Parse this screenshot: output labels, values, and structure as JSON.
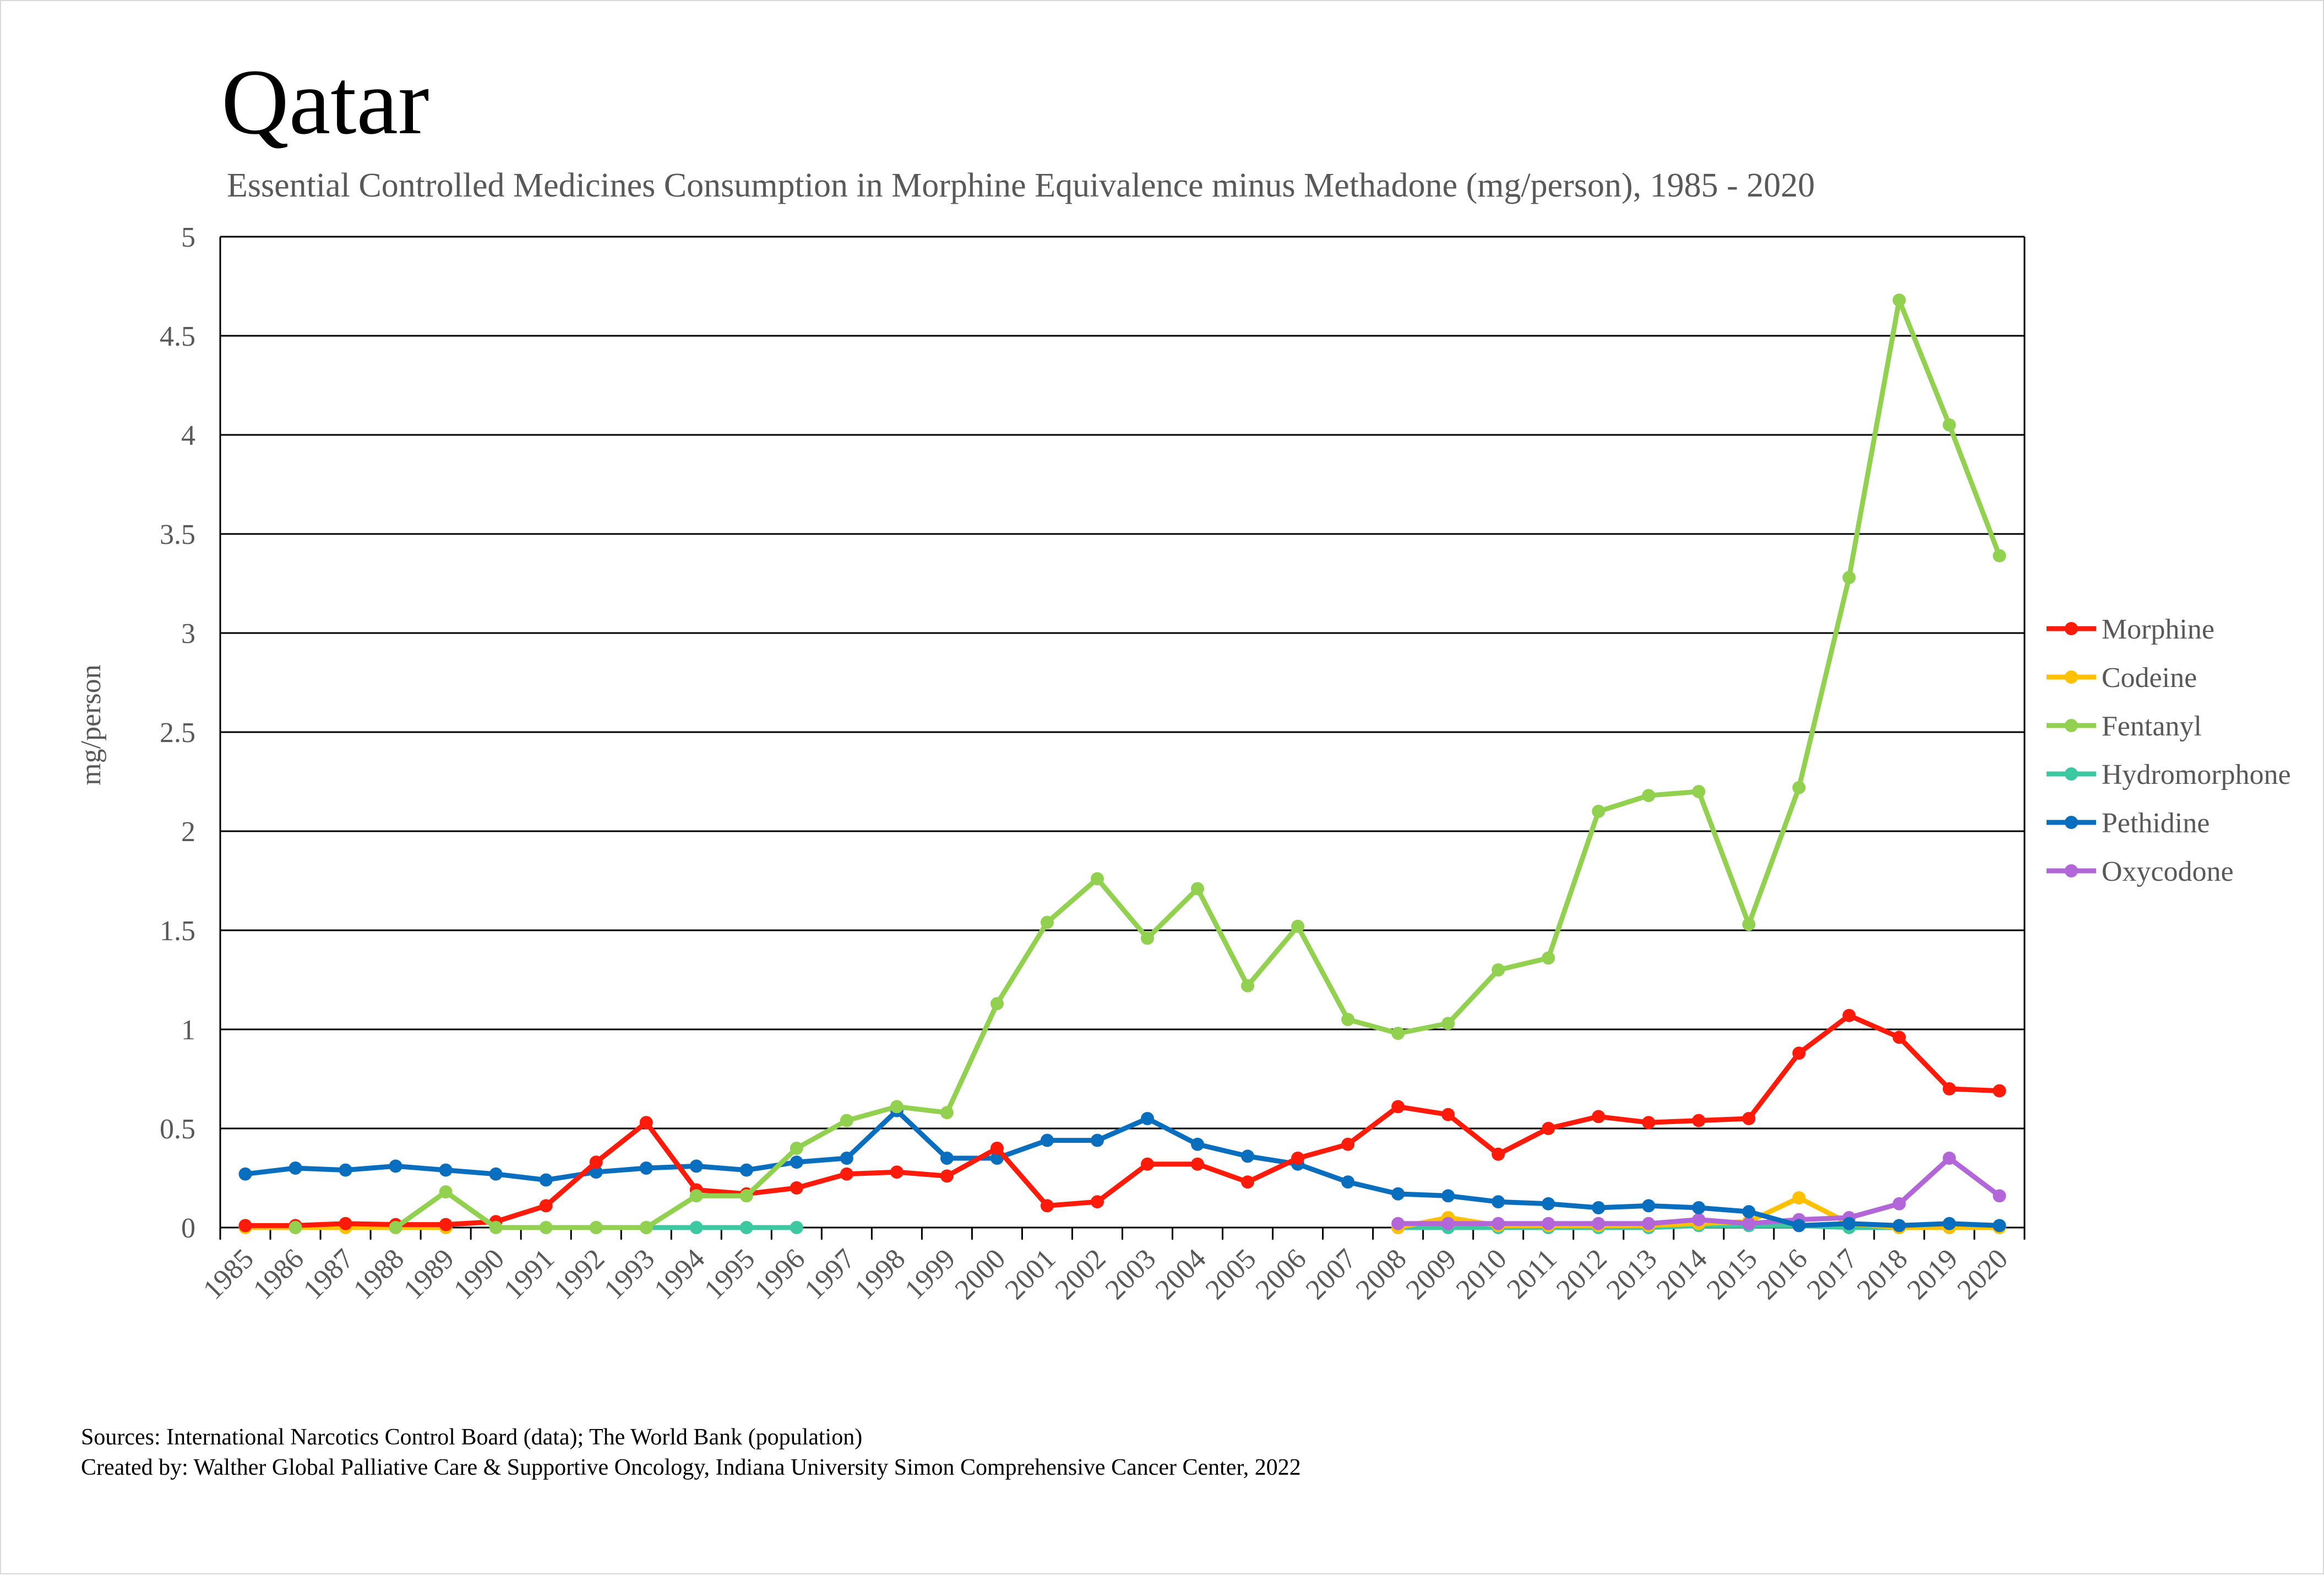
{
  "chart_data": {
    "type": "line",
    "title": "Qatar",
    "subtitle": "Essential Controlled Medicines Consumption in Morphine Equivalence minus Methadone (mg/person), 1985 - 2020",
    "xlabel": "",
    "ylabel": "mg/person",
    "ylim": [
      0,
      5
    ],
    "yticks": [
      "0",
      "0.5",
      "1",
      "1.5",
      "2",
      "2.5",
      "3",
      "3.5",
      "4",
      "4.5",
      "5"
    ],
    "categories": [
      "1985",
      "1986",
      "1987",
      "1988",
      "1989",
      "1990",
      "1991",
      "1992",
      "1993",
      "1994",
      "1995",
      "1996",
      "1997",
      "1998",
      "1999",
      "2000",
      "2001",
      "2002",
      "2003",
      "2004",
      "2005",
      "2006",
      "2007",
      "2008",
      "2009",
      "2010",
      "2011",
      "2012",
      "2013",
      "2014",
      "2015",
      "2016",
      "2017",
      "2018",
      "2019",
      "2020"
    ],
    "grid": true,
    "legend_position": "right",
    "series": [
      {
        "name": "Morphine",
        "color": "#ff1a0a",
        "values": [
          0.01,
          0.01,
          0.02,
          0.015,
          0.015,
          0.03,
          0.11,
          0.33,
          0.53,
          0.19,
          0.17,
          0.2,
          0.27,
          0.28,
          0.26,
          0.4,
          0.11,
          0.13,
          0.32,
          0.32,
          0.23,
          0.35,
          0.42,
          0.61,
          0.57,
          0.37,
          0.5,
          0.56,
          0.53,
          0.54,
          0.55,
          0.88,
          1.07,
          0.96,
          0.7,
          0.69
        ]
      },
      {
        "name": "Codeine",
        "color": "#ffc000",
        "values": [
          0,
          0,
          0,
          0,
          0,
          null,
          null,
          null,
          null,
          null,
          null,
          null,
          null,
          null,
          null,
          null,
          null,
          null,
          null,
          null,
          null,
          null,
          null,
          0,
          0.05,
          0.01,
          0.01,
          0.01,
          0.01,
          0.02,
          0.03,
          0.15,
          0.02,
          0,
          0,
          0
        ]
      },
      {
        "name": "Fentanyl",
        "color": "#92d050",
        "values": [
          null,
          0,
          null,
          0,
          0.18,
          0,
          0,
          0,
          0,
          0.16,
          0.16,
          0.4,
          0.54,
          0.61,
          0.58,
          1.13,
          1.54,
          1.76,
          1.46,
          1.71,
          1.22,
          1.52,
          1.05,
          0.98,
          1.03,
          1.3,
          1.36,
          2.1,
          2.18,
          2.2,
          1.53,
          2.22,
          3.28,
          4.68,
          4.05,
          3.39
        ]
      },
      {
        "name": "Hydromorphone",
        "color": "#3cc8a0",
        "values": [
          null,
          null,
          null,
          null,
          null,
          null,
          null,
          0,
          0,
          0,
          0,
          0,
          null,
          null,
          null,
          null,
          null,
          null,
          null,
          null,
          null,
          null,
          null,
          0,
          0,
          0,
          0,
          0,
          0,
          0.01,
          0.01,
          0.01,
          0,
          0,
          0,
          0
        ]
      },
      {
        "name": "Pethidine",
        "color": "#0a6ebf",
        "values": [
          0.27,
          0.3,
          0.29,
          0.31,
          0.29,
          0.27,
          0.24,
          0.28,
          0.3,
          0.31,
          0.29,
          0.33,
          0.35,
          0.59,
          0.35,
          0.35,
          0.44,
          0.44,
          0.55,
          0.42,
          0.36,
          0.32,
          0.23,
          0.17,
          0.16,
          0.13,
          0.12,
          0.1,
          0.11,
          0.1,
          0.08,
          0.01,
          0.02,
          0.01,
          0.02,
          0.01
        ]
      },
      {
        "name": "Oxycodone",
        "color": "#b266d8",
        "values": [
          null,
          null,
          null,
          null,
          null,
          null,
          null,
          null,
          null,
          null,
          null,
          null,
          null,
          null,
          null,
          null,
          null,
          null,
          null,
          null,
          null,
          null,
          null,
          0.02,
          0.02,
          0.02,
          0.02,
          0.02,
          0.02,
          0.04,
          0.02,
          0.04,
          0.05,
          0.12,
          0.35,
          0.16
        ]
      }
    ]
  },
  "footer": {
    "sources": "Sources: International Narcotics Control Board (data); The World Bank (population)",
    "created_by": "Created by: Walther Global Palliative Care & Supportive Oncology, Indiana University Simon Comprehensive Cancer Center, 2022"
  }
}
